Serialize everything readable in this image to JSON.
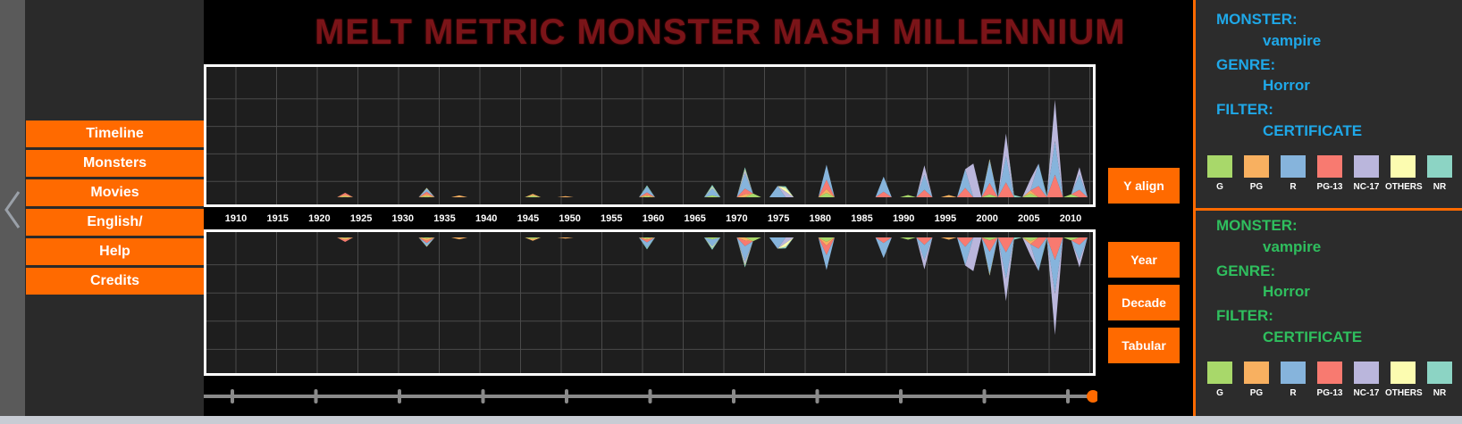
{
  "title": "MELT METRIC MONSTER MASH MILLENNIUM",
  "nav": {
    "items": [
      {
        "label": "Timeline"
      },
      {
        "label": "Monsters"
      },
      {
        "label": "Movies"
      },
      {
        "label": "English/"
      },
      {
        "label": "Help"
      },
      {
        "label": "Credits"
      }
    ]
  },
  "controls": {
    "y_align": "Y align",
    "year": "Year",
    "decade": "Decade",
    "tabular": "Tabular"
  },
  "panels": [
    {
      "monster_label": "MONSTER:",
      "monster": "vampire",
      "genre_label": "GENRE:",
      "genre": "Horror",
      "filter_label": "FILTER:",
      "filter": "CERTIFICATE",
      "color": "#1fa8e8"
    },
    {
      "monster_label": "MONSTER:",
      "monster": "vampire",
      "genre_label": "GENRE:",
      "genre": "Horror",
      "filter_label": "FILTER:",
      "filter": "CERTIFICATE",
      "color": "#2fbf5e"
    }
  ],
  "legend": [
    {
      "label": "G",
      "color": "#a8d86a"
    },
    {
      "label": "PG",
      "color": "#f8b060"
    },
    {
      "label": "R",
      "color": "#86b4dc"
    },
    {
      "label": "PG-13",
      "color": "#f87a70"
    },
    {
      "label": "NC-17",
      "color": "#bab6dc"
    },
    {
      "label": "OTHERS",
      "color": "#fcfcb0"
    },
    {
      "label": "NR",
      "color": "#8cd4c4"
    }
  ],
  "accent": "#ff6a00",
  "title_color": "#7a1418",
  "chart_data": {
    "type": "area",
    "stacked": true,
    "mirrored": true,
    "x_tick_labels": [
      "1910",
      "1915",
      "1920",
      "1925",
      "1930",
      "1935",
      "1940",
      "1945",
      "1950",
      "1955",
      "1960",
      "1965",
      "1970",
      "1975",
      "1980",
      "1985",
      "1990",
      "1995",
      "2000",
      "2005",
      "2010"
    ],
    "xlim": [
      1904,
      2012
    ],
    "series": [
      {
        "name": "G",
        "values": [
          [
            1921,
            0.2
          ],
          [
            1931,
            0.3
          ],
          [
            1944,
            0.4
          ],
          [
            1958,
            0.3
          ],
          [
            1966,
            0.5
          ],
          [
            1971,
            1
          ],
          [
            1980,
            1.2
          ],
          [
            1990,
            0.6
          ],
          [
            2000,
            0.8
          ],
          [
            2005,
            1
          ],
          [
            2010,
            0.8
          ]
        ]
      },
      {
        "name": "PG",
        "values": [
          [
            1921,
            0.5
          ],
          [
            1931,
            0.6
          ],
          [
            1935,
            0.5
          ],
          [
            1944,
            0.5
          ],
          [
            1948,
            0.3
          ],
          [
            1958,
            0.4
          ],
          [
            1970,
            0.8
          ],
          [
            1980,
            1
          ],
          [
            1995,
            0.6
          ],
          [
            2005,
            0.8
          ]
        ]
      },
      {
        "name": "R",
        "values": [
          [
            1931,
            0.8
          ],
          [
            1958,
            1.5
          ],
          [
            1966,
            2
          ],
          [
            1970,
            4
          ],
          [
            1974,
            3
          ],
          [
            1980,
            4
          ],
          [
            1987,
            4
          ],
          [
            1992,
            4
          ],
          [
            1997,
            5
          ],
          [
            2000,
            6
          ],
          [
            2002,
            7
          ],
          [
            2006,
            6
          ],
          [
            2008,
            9
          ],
          [
            2011,
            4
          ]
        ]
      },
      {
        "name": "PG-13",
        "values": [
          [
            1921,
            0.5
          ],
          [
            1931,
            0.6
          ],
          [
            1958,
            0.6
          ],
          [
            1970,
            1.5
          ],
          [
            1980,
            2.5
          ],
          [
            1987,
            1.5
          ],
          [
            1992,
            2
          ],
          [
            1997,
            2.5
          ],
          [
            2000,
            3
          ],
          [
            2002,
            4
          ],
          [
            2006,
            3
          ],
          [
            2008,
            6
          ],
          [
            2011,
            2
          ]
        ]
      },
      {
        "name": "NC-17",
        "values": [
          [
            1970,
            0.8
          ],
          [
            1975,
            1.5
          ],
          [
            1992,
            2.5
          ],
          [
            1998,
            9
          ],
          [
            2002,
            6
          ],
          [
            2005,
            3
          ],
          [
            2008,
            11
          ],
          [
            2011,
            2
          ]
        ]
      },
      {
        "name": "OTHERS",
        "values": [
          [
            1931,
            0.2
          ],
          [
            1966,
            0.3
          ],
          [
            1970,
            0.4
          ],
          [
            1975,
            1
          ],
          [
            2000,
            0.4
          ]
        ]
      },
      {
        "name": "NR",
        "values": [
          [
            1958,
            0.4
          ],
          [
            1966,
            0.5
          ],
          [
            1970,
            0.5
          ],
          [
            1975,
            0.4
          ],
          [
            2003,
            0.6
          ],
          [
            2007,
            0.5
          ]
        ]
      }
    ]
  }
}
